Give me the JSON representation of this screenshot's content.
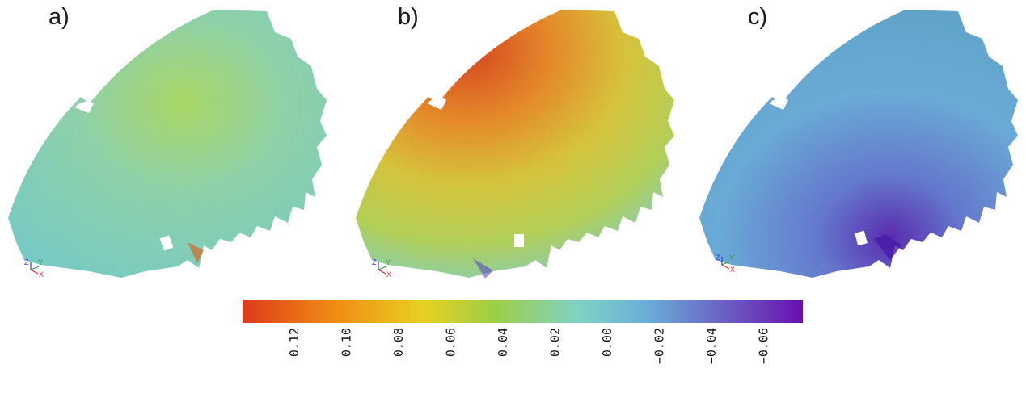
{
  "panels": [
    {
      "label": "a)",
      "color": "#7fd3c4"
    },
    {
      "label": "b)",
      "color": "#d9b84a"
    },
    {
      "label": "c)",
      "color": "#74b4d8"
    }
  ],
  "axis_triad": {
    "z": "Z",
    "y": "Y",
    "x": "X",
    "colors": {
      "x": "#e03030",
      "y": "#2ea02e",
      "z": "#3b3bd6"
    }
  },
  "colorbar": {
    "ticks": [
      "0.12",
      "0.10",
      "0.08",
      "0.06",
      "0.04",
      "0.02",
      "0.00",
      "−0.02",
      "−0.04",
      "−0.06"
    ],
    "colors": [
      "#dd3a1c",
      "#f08a14",
      "#e8d020",
      "#9ccf45",
      "#7fd3c4",
      "#6aaed8",
      "#6a60c4",
      "#6a0fb0"
    ]
  }
}
